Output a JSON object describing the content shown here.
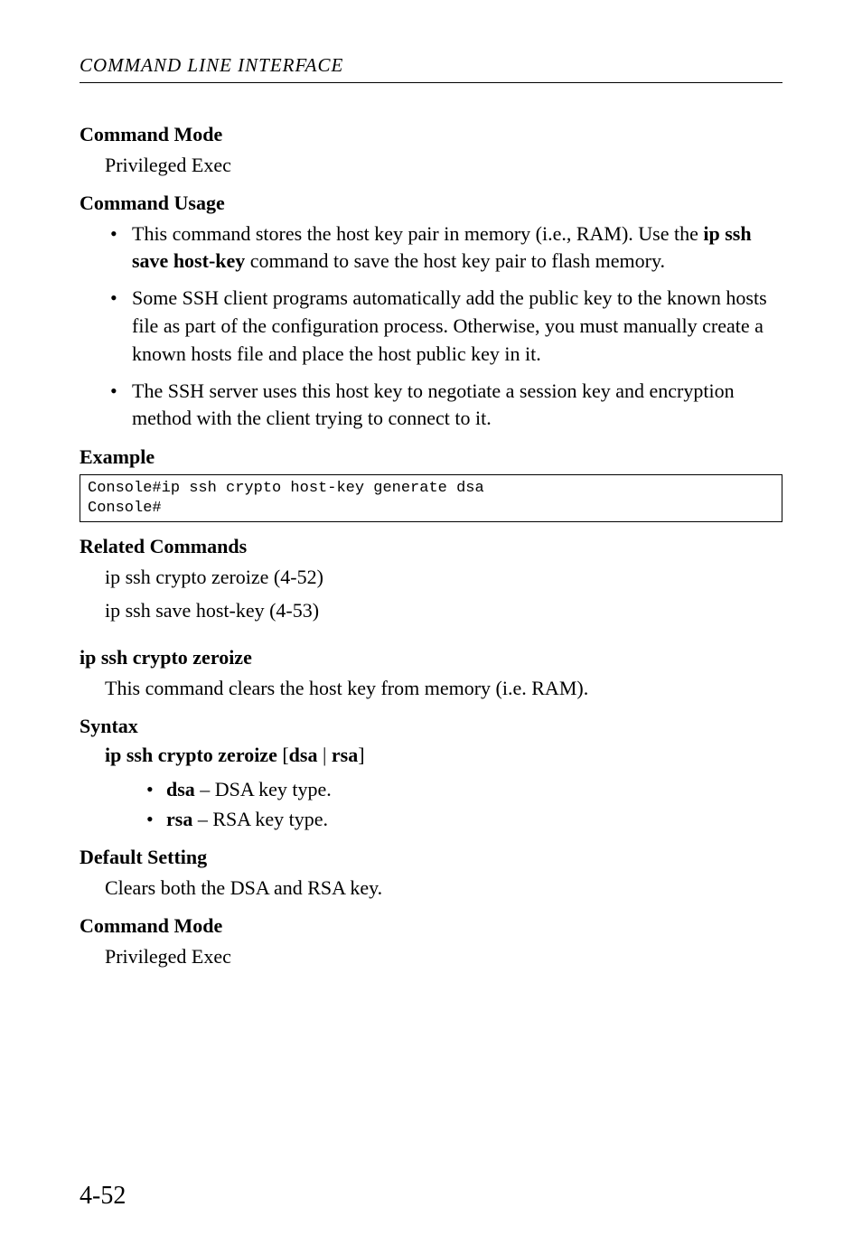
{
  "running_header": "COMMAND LINE INTERFACE",
  "sections": {
    "cmd_mode1": {
      "heading": "Command Mode",
      "body": "Privileged Exec"
    },
    "cmd_usage": {
      "heading": "Command Usage"
    },
    "usage_bullets": [
      {
        "pre": "This command stores the host key pair in memory (i.e., RAM). Use the ",
        "bold": "ip ssh save host-key",
        "post": " command to save the host key pair to flash memory."
      },
      {
        "pre": "Some SSH client programs automatically add the public key to the known hosts file as part of the configuration process. Otherwise, you must manually create a known hosts file and place the host public key in it.",
        "bold": "",
        "post": ""
      },
      {
        "pre": "The SSH server uses this host key to negotiate a session key and encryption method with the client trying to connect to it.",
        "bold": "",
        "post": ""
      }
    ],
    "example": {
      "heading": "Example"
    },
    "code": "Console#ip ssh crypto host-key generate dsa\nConsole#",
    "related": {
      "heading": "Related Commands",
      "line1": "ip ssh crypto zeroize (4-52)",
      "line2": "ip ssh save host-key (4-53)"
    },
    "subcmd": {
      "heading": "ip ssh crypto zeroize",
      "desc": "This command clears the host key from memory (i.e. RAM)."
    },
    "syntax": {
      "heading": "Syntax",
      "pre": "ip ssh crypto zeroize ",
      "bracket_open": "[",
      "opt1": "dsa",
      "pipe": " | ",
      "opt2": "rsa",
      "bracket_close": "]"
    },
    "syntax_bullets": [
      {
        "bold": "dsa",
        "rest": " – DSA key type."
      },
      {
        "bold": "rsa",
        "rest": " – RSA key type."
      }
    ],
    "default": {
      "heading": "Default Setting",
      "body": "Clears both the DSA and RSA key."
    },
    "cmd_mode2": {
      "heading": "Command Mode",
      "body": "Privileged Exec"
    }
  },
  "page_number": "4-52"
}
